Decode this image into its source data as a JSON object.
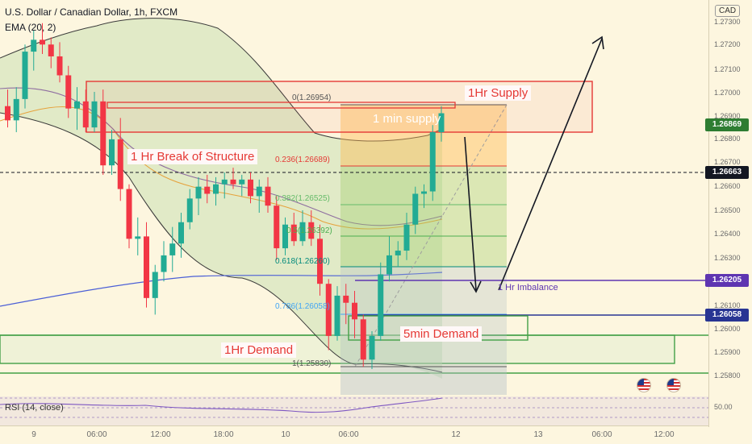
{
  "header": {
    "title": "U.S. Dollar / Canadian Dollar, 1h, FXCM",
    "indicator": "EMA (20, 2)"
  },
  "currency_box": "CAD",
  "price_axis": {
    "ticks": [
      "1.27300",
      "1.27200",
      "1.27100",
      "1.27000",
      "1.26900",
      "1.26800",
      "1.26700",
      "1.26600",
      "1.26500",
      "1.26400",
      "1.26300",
      "1.26100",
      "1.26000",
      "1.25900",
      "1.25800"
    ],
    "tags": [
      {
        "label": "1.26869",
        "bg": "#2e7d32",
        "fg": "#ffffff"
      },
      {
        "label": "1.26663",
        "bg": "#131722",
        "fg": "#ffffff"
      },
      {
        "label": "1.26205",
        "bg": "#5e35b1",
        "fg": "#ffffff"
      },
      {
        "label": "1.26058",
        "bg": "#283593",
        "fg": "#ffffff"
      }
    ],
    "rsi_tick": "50.00"
  },
  "time_axis": {
    "ticks": [
      "9",
      "06:00",
      "12:00",
      "18:00",
      "10",
      "06:00",
      "12",
      "13",
      "06:00",
      "12:00"
    ]
  },
  "annotations": {
    "supply_1h": "1Hr Supply",
    "supply_1min": "1 min supply",
    "break_of_structure": "1 Hr Break of Structure",
    "demand_1h": "1Hr Demand",
    "demand_5min": "5min Demand",
    "imbalance": "1 Hr Imbalance"
  },
  "fib_levels": [
    {
      "label": "0(1.26954)",
      "color": "#555555"
    },
    {
      "label": "0.236(1.26689)",
      "color": "#e53935"
    },
    {
      "label": "0.382(1.26525)",
      "color": "#66bb6a"
    },
    {
      "label": "0.5(1.26392)",
      "color": "#4caf50"
    },
    {
      "label": "0.618(1.26260)",
      "color": "#00897b"
    },
    {
      "label": "0.786(1.26058)",
      "color": "#42a5f5"
    },
    {
      "label": "1(1.25830)",
      "color": "#555555"
    }
  ],
  "rsi": {
    "label": "RSI (14, close)"
  },
  "colors": {
    "bull": "#22ab94",
    "bear": "#f23645",
    "background": "#fdf6df"
  },
  "chart_data": {
    "type": "candlestick",
    "title": "U.S. Dollar / Canadian Dollar, 1h, FXCM",
    "ylim": [
      1.2575,
      1.2735
    ],
    "candles": [
      {
        "o": 1.2695,
        "h": 1.2702,
        "l": 1.2686,
        "c": 1.2689
      },
      {
        "o": 1.2689,
        "h": 1.2703,
        "l": 1.2684,
        "c": 1.2698
      },
      {
        "o": 1.2698,
        "h": 1.2721,
        "l": 1.2694,
        "c": 1.2718
      },
      {
        "o": 1.2718,
        "h": 1.2727,
        "l": 1.271,
        "c": 1.2723
      },
      {
        "o": 1.2723,
        "h": 1.273,
        "l": 1.2717,
        "c": 1.2721
      },
      {
        "o": 1.2721,
        "h": 1.2724,
        "l": 1.2711,
        "c": 1.2716
      },
      {
        "o": 1.2716,
        "h": 1.2722,
        "l": 1.2705,
        "c": 1.2708
      },
      {
        "o": 1.2708,
        "h": 1.2712,
        "l": 1.269,
        "c": 1.2694
      },
      {
        "o": 1.2694,
        "h": 1.2703,
        "l": 1.2685,
        "c": 1.2697
      },
      {
        "o": 1.2697,
        "h": 1.2702,
        "l": 1.2684,
        "c": 1.2686
      },
      {
        "o": 1.2686,
        "h": 1.2701,
        "l": 1.2684,
        "c": 1.2697
      },
      {
        "o": 1.2697,
        "h": 1.2702,
        "l": 1.2666,
        "c": 1.267
      },
      {
        "o": 1.267,
        "h": 1.2685,
        "l": 1.2666,
        "c": 1.2681
      },
      {
        "o": 1.2681,
        "h": 1.269,
        "l": 1.2655,
        "c": 1.266
      },
      {
        "o": 1.266,
        "h": 1.2662,
        "l": 1.2635,
        "c": 1.2639
      },
      {
        "o": 1.2639,
        "h": 1.2648,
        "l": 1.2632,
        "c": 1.264
      },
      {
        "o": 1.264,
        "h": 1.2646,
        "l": 1.261,
        "c": 1.2614
      },
      {
        "o": 1.2614,
        "h": 1.2628,
        "l": 1.2607,
        "c": 1.2625
      },
      {
        "o": 1.2625,
        "h": 1.2638,
        "l": 1.2621,
        "c": 1.2632
      },
      {
        "o": 1.2632,
        "h": 1.2644,
        "l": 1.2625,
        "c": 1.2637
      },
      {
        "o": 1.2637,
        "h": 1.265,
        "l": 1.2631,
        "c": 1.2646
      },
      {
        "o": 1.2646,
        "h": 1.266,
        "l": 1.2643,
        "c": 1.2656
      },
      {
        "o": 1.2656,
        "h": 1.2665,
        "l": 1.2649,
        "c": 1.2661
      },
      {
        "o": 1.2661,
        "h": 1.2666,
        "l": 1.2654,
        "c": 1.2658
      },
      {
        "o": 1.2658,
        "h": 1.2665,
        "l": 1.2653,
        "c": 1.2662
      },
      {
        "o": 1.2662,
        "h": 1.2667,
        "l": 1.2656,
        "c": 1.2664
      },
      {
        "o": 1.2664,
        "h": 1.2669,
        "l": 1.266,
        "c": 1.2662
      },
      {
        "o": 1.2662,
        "h": 1.2666,
        "l": 1.2657,
        "c": 1.2664
      },
      {
        "o": 1.2664,
        "h": 1.2667,
        "l": 1.2654,
        "c": 1.2657
      },
      {
        "o": 1.2657,
        "h": 1.2664,
        "l": 1.265,
        "c": 1.2661
      },
      {
        "o": 1.2661,
        "h": 1.2665,
        "l": 1.265,
        "c": 1.2653
      },
      {
        "o": 1.2653,
        "h": 1.2657,
        "l": 1.263,
        "c": 1.2635
      },
      {
        "o": 1.2635,
        "h": 1.2648,
        "l": 1.2632,
        "c": 1.2645
      },
      {
        "o": 1.2645,
        "h": 1.265,
        "l": 1.2636,
        "c": 1.2638
      },
      {
        "o": 1.2638,
        "h": 1.2651,
        "l": 1.2636,
        "c": 1.2646
      },
      {
        "o": 1.2646,
        "h": 1.2651,
        "l": 1.2636,
        "c": 1.2639
      },
      {
        "o": 1.2639,
        "h": 1.2645,
        "l": 1.2615,
        "c": 1.262
      },
      {
        "o": 1.262,
        "h": 1.2622,
        "l": 1.2592,
        "c": 1.2598
      },
      {
        "o": 1.2598,
        "h": 1.2619,
        "l": 1.2596,
        "c": 1.2615
      },
      {
        "o": 1.2615,
        "h": 1.262,
        "l": 1.2603,
        "c": 1.2612
      },
      {
        "o": 1.2612,
        "h": 1.2617,
        "l": 1.2597,
        "c": 1.2605
      },
      {
        "o": 1.2605,
        "h": 1.2607,
        "l": 1.2585,
        "c": 1.2588
      },
      {
        "o": 1.2588,
        "h": 1.26,
        "l": 1.2584,
        "c": 1.2598
      },
      {
        "o": 1.2598,
        "h": 1.2629,
        "l": 1.2596,
        "c": 1.2624
      },
      {
        "o": 1.2624,
        "h": 1.264,
        "l": 1.2621,
        "c": 1.2632
      },
      {
        "o": 1.2632,
        "h": 1.2638,
        "l": 1.2627,
        "c": 1.2634
      },
      {
        "o": 1.2634,
        "h": 1.265,
        "l": 1.263,
        "c": 1.2645
      },
      {
        "o": 1.2645,
        "h": 1.2661,
        "l": 1.2641,
        "c": 1.2658
      },
      {
        "o": 1.2658,
        "h": 1.2662,
        "l": 1.2652,
        "c": 1.2659
      },
      {
        "o": 1.2659,
        "h": 1.2687,
        "l": 1.2655,
        "c": 1.2684
      },
      {
        "o": 1.2684,
        "h": 1.2695,
        "l": 1.268,
        "c": 1.2692
      }
    ]
  }
}
